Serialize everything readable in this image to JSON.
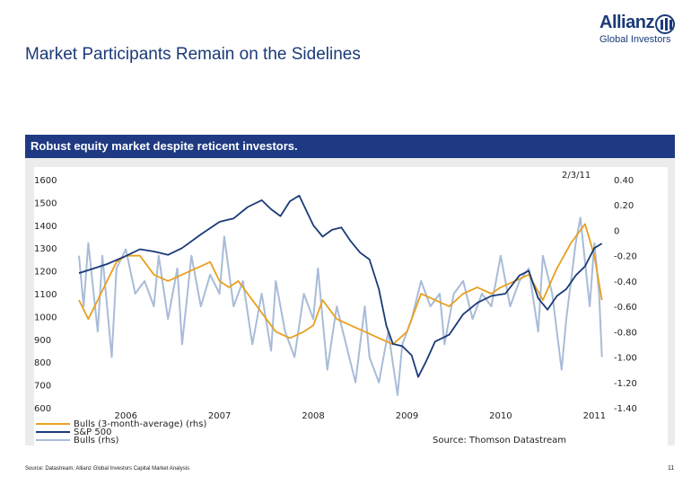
{
  "slide": {
    "title": "Market Participants Remain on the Sidelines",
    "banner": "Robust equity market despite reticent investors.",
    "footer_source": "Source: Datastream; Allianz Global Investors Capital Market Analysis",
    "page_number": "11"
  },
  "logo": {
    "brand": "Allianz",
    "sub": "Global Investors"
  },
  "colors": {
    "bulls_avg": "#e8a020",
    "sp500": "#1a3a78",
    "bulls": "#a8bcd8",
    "banner": "#1f3a82"
  },
  "chart_data": {
    "type": "line",
    "date_label": "2/3/11",
    "source_note": "Source: Thomson Datastream",
    "x_ticks": [
      "2006",
      "2007",
      "2008",
      "2009",
      "2010",
      "2011"
    ],
    "x_range": [
      2005.5,
      2011.15
    ],
    "y_left": {
      "ticks": [
        "1600",
        "1500",
        "1400",
        "1300",
        "1200",
        "1100",
        "1000",
        "900",
        "800",
        "700",
        "600"
      ],
      "range": [
        600,
        1600
      ]
    },
    "y_right": {
      "ticks": [
        "0.40",
        "0.20",
        "0",
        "-0.20",
        "-0.40",
        "-0.60",
        "-0.80",
        "-1.00",
        "-1.20",
        "-1.40"
      ],
      "range": [
        -1.4,
        0.4
      ]
    },
    "legend": [
      "Bulls (3-month-average) (rhs)",
      "S&P 500",
      "Bulls (rhs)"
    ],
    "series": [
      {
        "name": "S&P 500",
        "axis": "left",
        "x": [
          2005.5,
          2005.65,
          2005.8,
          2006.0,
          2006.15,
          2006.3,
          2006.45,
          2006.6,
          2006.8,
          2007.0,
          2007.15,
          2007.3,
          2007.45,
          2007.55,
          2007.65,
          2007.75,
          2007.85,
          2008.0,
          2008.1,
          2008.2,
          2008.3,
          2008.4,
          2008.5,
          2008.6,
          2008.7,
          2008.78,
          2008.85,
          2008.95,
          2009.05,
          2009.12,
          2009.2,
          2009.3,
          2009.45,
          2009.6,
          2009.75,
          2009.9,
          2010.05,
          2010.2,
          2010.3,
          2010.4,
          2010.5,
          2010.6,
          2010.7,
          2010.8,
          2010.9,
          2011.0,
          2011.08
        ],
        "values": [
          1190,
          1210,
          1230,
          1265,
          1295,
          1285,
          1270,
          1300,
          1360,
          1415,
          1430,
          1480,
          1510,
          1470,
          1440,
          1505,
          1530,
          1400,
          1350,
          1380,
          1390,
          1330,
          1280,
          1250,
          1120,
          960,
          880,
          870,
          830,
          735,
          800,
          890,
          920,
          1010,
          1060,
          1090,
          1100,
          1180,
          1200,
          1080,
          1030,
          1090,
          1120,
          1180,
          1220,
          1300,
          1320
        ]
      },
      {
        "name": "Bulls (3-month-average)",
        "axis": "right",
        "x": [
          2005.5,
          2005.6,
          2005.7,
          2005.8,
          2005.9,
          2006.0,
          2006.15,
          2006.3,
          2006.45,
          2006.6,
          2006.75,
          2006.9,
          2007.0,
          2007.1,
          2007.2,
          2007.3,
          2007.45,
          2007.6,
          2007.75,
          2007.9,
          2008.0,
          2008.1,
          2008.25,
          2008.4,
          2008.55,
          2008.7,
          2008.85,
          2009.0,
          2009.15,
          2009.3,
          2009.45,
          2009.6,
          2009.75,
          2009.9,
          2010.0,
          2010.15,
          2010.3,
          2010.45,
          2010.6,
          2010.75,
          2010.9,
          2011.0,
          2011.08
        ],
        "values": [
          -0.55,
          -0.7,
          -0.55,
          -0.4,
          -0.25,
          -0.2,
          -0.2,
          -0.35,
          -0.4,
          -0.35,
          -0.3,
          -0.25,
          -0.4,
          -0.45,
          -0.4,
          -0.5,
          -0.65,
          -0.8,
          -0.85,
          -0.8,
          -0.75,
          -0.55,
          -0.7,
          -0.75,
          -0.8,
          -0.85,
          -0.9,
          -0.8,
          -0.5,
          -0.55,
          -0.6,
          -0.5,
          -0.45,
          -0.5,
          -0.45,
          -0.4,
          -0.35,
          -0.55,
          -0.3,
          -0.1,
          0.05,
          -0.2,
          -0.55
        ]
      },
      {
        "name": "Bulls",
        "axis": "right",
        "x": [
          2005.5,
          2005.55,
          2005.6,
          2005.7,
          2005.75,
          2005.85,
          2005.9,
          2006.0,
          2006.1,
          2006.2,
          2006.3,
          2006.35,
          2006.45,
          2006.55,
          2006.6,
          2006.7,
          2006.8,
          2006.9,
          2007.0,
          2007.05,
          2007.15,
          2007.25,
          2007.35,
          2007.45,
          2007.55,
          2007.6,
          2007.7,
          2007.8,
          2007.9,
          2008.0,
          2008.05,
          2008.15,
          2008.25,
          2008.35,
          2008.45,
          2008.55,
          2008.6,
          2008.7,
          2008.8,
          2008.9,
          2008.95,
          2009.05,
          2009.15,
          2009.25,
          2009.35,
          2009.4,
          2009.5,
          2009.6,
          2009.7,
          2009.8,
          2009.9,
          2010.0,
          2010.1,
          2010.2,
          2010.3,
          2010.4,
          2010.45,
          2010.55,
          2010.65,
          2010.7,
          2010.8,
          2010.85,
          2010.95,
          2011.0,
          2011.05,
          2011.08
        ],
        "values": [
          -0.2,
          -0.6,
          -0.1,
          -0.8,
          -0.2,
          -1.0,
          -0.3,
          -0.15,
          -0.5,
          -0.4,
          -0.6,
          -0.2,
          -0.7,
          -0.3,
          -0.9,
          -0.2,
          -0.6,
          -0.35,
          -0.5,
          -0.05,
          -0.6,
          -0.4,
          -0.9,
          -0.5,
          -0.95,
          -0.4,
          -0.8,
          -1.0,
          -0.5,
          -0.7,
          -0.3,
          -1.1,
          -0.6,
          -0.9,
          -1.2,
          -0.6,
          -1.0,
          -1.2,
          -0.8,
          -1.3,
          -0.9,
          -0.7,
          -0.4,
          -0.6,
          -0.5,
          -0.9,
          -0.5,
          -0.4,
          -0.7,
          -0.5,
          -0.6,
          -0.2,
          -0.6,
          -0.4,
          -0.3,
          -0.8,
          -0.2,
          -0.5,
          -1.1,
          -0.7,
          -0.1,
          0.1,
          -0.6,
          -0.1,
          -0.5,
          -1.0
        ]
      }
    ]
  }
}
